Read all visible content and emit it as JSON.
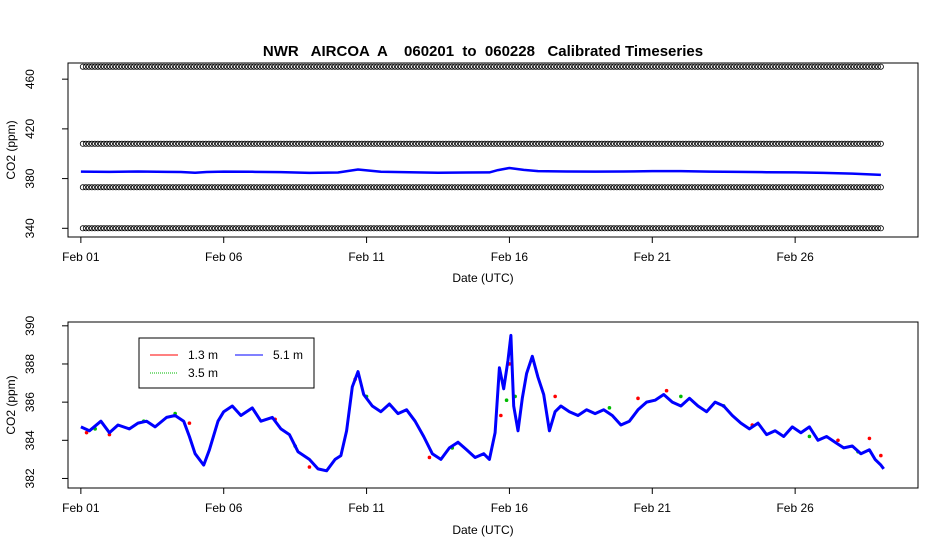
{
  "chart_data": [
    {
      "type": "scatter",
      "title": "NWR   AIRCOA  A    060201  to  060228   Calibrated Timeseries",
      "xlabel": "Date (UTC)",
      "ylabel": "CO2 (ppm)",
      "x_ticks": [
        "Feb 01",
        "Feb 06",
        "Feb 11",
        "Feb 16",
        "Feb 21",
        "Feb 26"
      ],
      "x_tick_days": [
        1,
        6,
        11,
        16,
        21,
        26
      ],
      "xlim": [
        0.55,
        30.3
      ],
      "ylim": [
        333,
        473
      ],
      "y_ticks": [
        340,
        380,
        420,
        460
      ],
      "reference_levels": [
        340,
        373,
        408,
        470
      ],
      "series": [
        {
          "color": "#0000ff",
          "values": [
            [
              1.0,
              385.6
            ],
            [
              2.0,
              385.4
            ],
            [
              3.0,
              385.7
            ],
            [
              4.0,
              385.4
            ],
            [
              4.5,
              385.3
            ],
            [
              5.0,
              384.7
            ],
            [
              5.4,
              385.3
            ],
            [
              6.0,
              385.6
            ],
            [
              7.0,
              385.5
            ],
            [
              8.0,
              385.2
            ],
            [
              9.0,
              384.6
            ],
            [
              10.0,
              384.9
            ],
            [
              10.7,
              387.3
            ],
            [
              11.5,
              385.5
            ],
            [
              12.5,
              385.1
            ],
            [
              13.5,
              384.7
            ],
            [
              14.5,
              384.9
            ],
            [
              15.3,
              385.0
            ],
            [
              15.6,
              386.8
            ],
            [
              16.0,
              388.5
            ],
            [
              16.5,
              387.0
            ],
            [
              17.0,
              386.0
            ],
            [
              18.0,
              385.7
            ],
            [
              19.0,
              385.6
            ],
            [
              20.0,
              385.7
            ],
            [
              21.0,
              386.0
            ],
            [
              22.0,
              386.0
            ],
            [
              23.0,
              385.6
            ],
            [
              24.0,
              385.4
            ],
            [
              25.0,
              385.1
            ],
            [
              26.0,
              385.0
            ],
            [
              27.0,
              384.6
            ],
            [
              28.0,
              384.0
            ],
            [
              29.0,
              383.0
            ]
          ]
        }
      ]
    },
    {
      "type": "line",
      "xlabel": "Date (UTC)",
      "ylabel": "CO2 (ppm)",
      "x_ticks": [
        "Feb 01",
        "Feb 06",
        "Feb 11",
        "Feb 16",
        "Feb 21",
        "Feb 26"
      ],
      "x_tick_days": [
        1,
        6,
        11,
        16,
        21,
        26
      ],
      "xlim": [
        0.55,
        30.3
      ],
      "ylim": [
        381.5,
        390.2
      ],
      "y_ticks": [
        382,
        384,
        386,
        388,
        390
      ],
      "legend_position": "top-left",
      "series": [
        {
          "name": "1.3 m",
          "color": "#ff0000",
          "values": [
            [
              1.2,
              384.4
            ],
            [
              2.0,
              384.3
            ],
            [
              4.8,
              384.9
            ],
            [
              7.8,
              385.1
            ],
            [
              9.0,
              382.6
            ],
            [
              10.6,
              387.2
            ],
            [
              13.2,
              383.1
            ],
            [
              15.7,
              385.3
            ],
            [
              16.0,
              388.0
            ],
            [
              17.6,
              386.3
            ],
            [
              20.5,
              386.2
            ],
            [
              21.5,
              386.6
            ],
            [
              24.5,
              384.8
            ],
            [
              27.5,
              384.0
            ],
            [
              28.6,
              384.1
            ],
            [
              29.0,
              383.2
            ]
          ]
        },
        {
          "name": "3.5 m",
          "color": "#00bb00",
          "values": [
            [
              1.5,
              384.6
            ],
            [
              3.2,
              385.0
            ],
            [
              4.3,
              385.4
            ],
            [
              8.5,
              383.7
            ],
            [
              11.0,
              386.3
            ],
            [
              14.0,
              383.6
            ],
            [
              15.9,
              386.1
            ],
            [
              16.2,
              386.3
            ],
            [
              19.5,
              385.7
            ],
            [
              22.0,
              386.3
            ],
            [
              23.5,
              385.8
            ],
            [
              26.5,
              384.2
            ],
            [
              28.2,
              383.4
            ]
          ]
        },
        {
          "name": "5.1 m",
          "color": "#0000ff",
          "values": [
            [
              1.0,
              384.7
            ],
            [
              1.3,
              384.5
            ],
            [
              1.7,
              385.0
            ],
            [
              2.0,
              384.4
            ],
            [
              2.3,
              384.8
            ],
            [
              2.7,
              384.6
            ],
            [
              3.0,
              384.9
            ],
            [
              3.3,
              385.0
            ],
            [
              3.6,
              384.7
            ],
            [
              4.0,
              385.2
            ],
            [
              4.3,
              385.3
            ],
            [
              4.6,
              385.0
            ],
            [
              4.8,
              384.2
            ],
            [
              5.0,
              383.3
            ],
            [
              5.3,
              382.7
            ],
            [
              5.5,
              383.5
            ],
            [
              5.8,
              385.0
            ],
            [
              6.0,
              385.5
            ],
            [
              6.3,
              385.8
            ],
            [
              6.6,
              385.3
            ],
            [
              7.0,
              385.7
            ],
            [
              7.3,
              385.0
            ],
            [
              7.7,
              385.2
            ],
            [
              8.0,
              384.6
            ],
            [
              8.3,
              384.3
            ],
            [
              8.6,
              383.4
            ],
            [
              9.0,
              383.0
            ],
            [
              9.3,
              382.5
            ],
            [
              9.6,
              382.4
            ],
            [
              9.9,
              383.0
            ],
            [
              10.1,
              383.2
            ],
            [
              10.3,
              384.5
            ],
            [
              10.5,
              386.8
            ],
            [
              10.7,
              387.6
            ],
            [
              10.9,
              386.4
            ],
            [
              11.2,
              385.8
            ],
            [
              11.5,
              385.5
            ],
            [
              11.8,
              385.9
            ],
            [
              12.1,
              385.4
            ],
            [
              12.4,
              385.6
            ],
            [
              12.7,
              385.0
            ],
            [
              13.0,
              384.2
            ],
            [
              13.3,
              383.3
            ],
            [
              13.6,
              383.0
            ],
            [
              13.9,
              383.6
            ],
            [
              14.2,
              383.9
            ],
            [
              14.5,
              383.5
            ],
            [
              14.8,
              383.1
            ],
            [
              15.1,
              383.3
            ],
            [
              15.3,
              383.0
            ],
            [
              15.5,
              384.4
            ],
            [
              15.65,
              387.8
            ],
            [
              15.8,
              386.7
            ],
            [
              15.95,
              388.2
            ],
            [
              16.05,
              389.5
            ],
            [
              16.15,
              385.8
            ],
            [
              16.3,
              384.5
            ],
            [
              16.45,
              386.2
            ],
            [
              16.6,
              387.5
            ],
            [
              16.8,
              388.4
            ],
            [
              17.0,
              387.3
            ],
            [
              17.2,
              386.4
            ],
            [
              17.4,
              384.5
            ],
            [
              17.6,
              385.5
            ],
            [
              17.8,
              385.8
            ],
            [
              18.1,
              385.5
            ],
            [
              18.4,
              385.3
            ],
            [
              18.7,
              385.6
            ],
            [
              19.0,
              385.4
            ],
            [
              19.3,
              385.6
            ],
            [
              19.6,
              385.3
            ],
            [
              19.9,
              384.8
            ],
            [
              20.2,
              385.0
            ],
            [
              20.5,
              385.6
            ],
            [
              20.8,
              386.0
            ],
            [
              21.1,
              386.1
            ],
            [
              21.4,
              386.4
            ],
            [
              21.7,
              386.0
            ],
            [
              22.0,
              385.8
            ],
            [
              22.3,
              386.2
            ],
            [
              22.6,
              385.8
            ],
            [
              22.9,
              385.5
            ],
            [
              23.2,
              386.0
            ],
            [
              23.5,
              385.8
            ],
            [
              23.8,
              385.3
            ],
            [
              24.1,
              384.9
            ],
            [
              24.4,
              384.6
            ],
            [
              24.7,
              384.9
            ],
            [
              25.0,
              384.3
            ],
            [
              25.3,
              384.5
            ],
            [
              25.6,
              384.2
            ],
            [
              25.9,
              384.7
            ],
            [
              26.2,
              384.4
            ],
            [
              26.5,
              384.7
            ],
            [
              26.8,
              384.0
            ],
            [
              27.1,
              384.2
            ],
            [
              27.4,
              383.9
            ],
            [
              27.7,
              383.6
            ],
            [
              28.0,
              383.7
            ],
            [
              28.3,
              383.3
            ],
            [
              28.6,
              383.5
            ],
            [
              28.8,
              383.0
            ],
            [
              29.0,
              382.7
            ],
            [
              29.1,
              382.5
            ]
          ]
        }
      ]
    }
  ]
}
